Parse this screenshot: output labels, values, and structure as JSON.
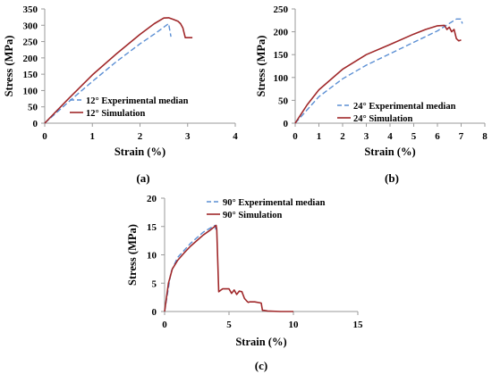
{
  "colors": {
    "experimental": "#5b8fd4",
    "simulation": "#a0282a",
    "axis": "#9a9a9a"
  },
  "chart_data": [
    {
      "type": "line",
      "caption": "(a)",
      "xlabel": "Strain (%)",
      "ylabel": "Stress (MPa)",
      "xlim": [
        0,
        4
      ],
      "ylim": [
        0,
        350
      ],
      "xticks": [
        "0",
        "1",
        "2",
        "3",
        "4"
      ],
      "yticks": [
        "0",
        "50",
        "100",
        "150",
        "200",
        "250",
        "300",
        "350"
      ],
      "series": [
        {
          "name": "12° Experimental median",
          "style": "dashed",
          "x": [
            0,
            0.5,
            1.0,
            1.5,
            2.0,
            2.3,
            2.6,
            2.65
          ],
          "y": [
            0,
            65,
            128,
            188,
            243,
            273,
            305,
            265
          ]
        },
        {
          "name": "12° Simulation",
          "style": "solid",
          "x": [
            0,
            0.5,
            1.0,
            1.5,
            2.0,
            2.3,
            2.5,
            2.6,
            2.7,
            2.8,
            2.85,
            2.9,
            2.95,
            3.0,
            3.1
          ],
          "y": [
            0,
            75,
            148,
            212,
            272,
            305,
            322,
            323,
            318,
            312,
            305,
            292,
            262,
            262,
            262
          ]
        }
      ]
    },
    {
      "type": "line",
      "caption": "(b)",
      "xlabel": "Strain (%)",
      "ylabel": "Stress (MPa)",
      "xlim": [
        0,
        8
      ],
      "ylim": [
        0,
        250
      ],
      "xticks": [
        "0",
        "1",
        "2",
        "3",
        "4",
        "5",
        "6",
        "7",
        "8"
      ],
      "yticks": [
        "0",
        "50",
        "100",
        "150",
        "200",
        "250"
      ],
      "series": [
        {
          "name": "24° Experimental median",
          "style": "dashed",
          "x": [
            0,
            1,
            2,
            3,
            4,
            5,
            6,
            6.8,
            7.0,
            7.05
          ],
          "y": [
            0,
            58,
            97,
            127,
            152,
            177,
            202,
            228,
            228,
            218
          ]
        },
        {
          "name": "24° Simulation",
          "style": "solid",
          "x": [
            0,
            0.5,
            1,
            2,
            3,
            4,
            5,
            5.5,
            6,
            6.3,
            6.4,
            6.5,
            6.6,
            6.7,
            6.8,
            6.9,
            7.0
          ],
          "y": [
            0,
            40,
            73,
            118,
            150,
            172,
            195,
            205,
            213,
            214,
            205,
            210,
            200,
            205,
            185,
            180,
            182
          ]
        }
      ]
    },
    {
      "type": "line",
      "caption": "(c)",
      "xlabel": "Strain (%)",
      "ylabel": "Stress (MPa)",
      "xlim": [
        0,
        15
      ],
      "ylim": [
        0,
        20
      ],
      "xticks": [
        "0",
        "5",
        "10",
        "15"
      ],
      "yticks": [
        "0",
        "5",
        "10",
        "15",
        "20"
      ],
      "series": [
        {
          "name": "90° Experimental median",
          "style": "dashed",
          "x": [
            0,
            0.5,
            1,
            2,
            3,
            3.9,
            4.0
          ],
          "y": [
            0,
            7,
            9.5,
            12,
            14,
            15.2,
            14.2
          ]
        },
        {
          "name": "90° Simulation",
          "style": "solid",
          "x": [
            0,
            0.3,
            0.6,
            1,
            1.5,
            2,
            2.5,
            3,
            3.5,
            4.0,
            4.05,
            4.2,
            4.5,
            5.0,
            5.2,
            5.4,
            5.6,
            5.8,
            6.0,
            6.2,
            6.4,
            6.5,
            6.6,
            7.0,
            7.5,
            7.6,
            7.7,
            8.0,
            9.0,
            10.0
          ],
          "y": [
            0,
            5,
            7.5,
            9,
            10.3,
            11.5,
            12.5,
            13.5,
            14.3,
            15.2,
            14.5,
            3.5,
            4,
            4,
            3.2,
            3.8,
            3,
            3.6,
            3.5,
            2.3,
            1.8,
            1.6,
            1.7,
            1.7,
            1.5,
            0.2,
            0.2,
            0.1,
            0,
            0
          ]
        }
      ]
    }
  ]
}
